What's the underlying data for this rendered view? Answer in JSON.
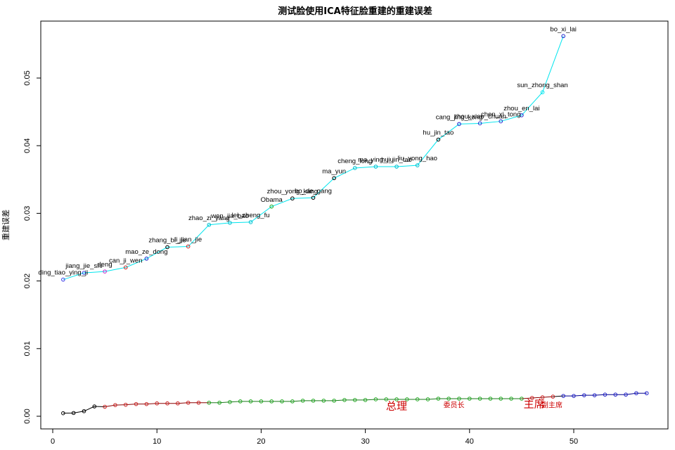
{
  "chart_data": {
    "type": "line",
    "title": "测试脸使用ICA特征脸重建的重建误差",
    "xlabel": "",
    "ylabel": "重建误差",
    "xlim": [
      0,
      58
    ],
    "ylim": [
      0,
      0.0585
    ],
    "x_ticks": [
      "0",
      "10",
      "20",
      "30",
      "40",
      "50"
    ],
    "y_ticks": [
      "0.00",
      "0.01",
      "0.02",
      "0.03",
      "0.04",
      "0.05"
    ],
    "grid": false,
    "series": [
      {
        "line_color": "#00e5ee",
        "points": [
          {
            "x": 1,
            "y": 0.0202,
            "label": "ding_tiao_ying_ji",
            "color": "#3a3ae8"
          },
          {
            "x": 3,
            "y": 0.0212,
            "label": "jiang_jie_shi",
            "color": "#3a3ae8"
          },
          {
            "x": 5,
            "y": 0.0214,
            "label": "deng",
            "color": "#cc22cc"
          },
          {
            "x": 7,
            "y": 0.022,
            "label": "can_ji_wen",
            "color": "#cc2222"
          },
          {
            "x": 9,
            "y": 0.0233,
            "label": "mao_ze_dong",
            "color": "#2222cc"
          },
          {
            "x": 11,
            "y": 0.025,
            "label": "zhang_bi_jie",
            "color": "#000000"
          },
          {
            "x": 13,
            "y": 0.0251,
            "label": "li_jian_jie",
            "color": "#cc2222"
          },
          {
            "x": 15,
            "y": 0.0283,
            "label": "zhao_zi_yang",
            "color": "#00bbcc"
          },
          {
            "x": 17,
            "y": 0.0286,
            "label": "wen_jia_bao",
            "color": "#00bbcc"
          },
          {
            "x": 19,
            "y": 0.0287,
            "label": "lei_zheng_fu",
            "color": "#00bbcc"
          },
          {
            "x": 21,
            "y": 0.031,
            "label": "Obama",
            "color": "#22aa22"
          },
          {
            "x": 23,
            "y": 0.0322,
            "label": "zhou_yong_kang",
            "color": "#000000"
          },
          {
            "x": 25,
            "y": 0.0323,
            "label": "bo_de_gang",
            "color": "#000000"
          },
          {
            "x": 27,
            "y": 0.0352,
            "label": "ma_yun",
            "color": "#000000"
          },
          {
            "x": 29,
            "y": 0.0367,
            "label": "cheng_long",
            "color": "#00bbcc"
          },
          {
            "x": 31,
            "y": 0.0369,
            "label": "ma_ying_jiu",
            "color": "#00bbcc"
          },
          {
            "x": 33,
            "y": 0.0369,
            "label": "hu_jin_tao",
            "color": "#00bbcc"
          },
          {
            "x": 35,
            "y": 0.0371,
            "label": "liu_yong_hao",
            "color": "#00bbcc"
          },
          {
            "x": 37,
            "y": 0.0409,
            "label": "hu_jin_tao",
            "color": "#000000"
          },
          {
            "x": 39,
            "y": 0.0432,
            "label": "cang_jing_kong",
            "color": "#2222cc"
          },
          {
            "x": 41,
            "y": 0.0433,
            "label": "zhou_xiao_chuan",
            "color": "#2222cc"
          },
          {
            "x": 43,
            "y": 0.0436,
            "label": "chen_xi_tong",
            "color": "#2222cc"
          },
          {
            "x": 45,
            "y": 0.0445,
            "label": "zhou_en_lai",
            "color": "#2222cc"
          },
          {
            "x": 47,
            "y": 0.0479,
            "label": "sun_zhong_shan",
            "color": "#00e5ee"
          },
          {
            "x": 49,
            "y": 0.0562,
            "label": "bo_xi_lai",
            "color": "#2222cc"
          }
        ]
      },
      {
        "segments": [
          {
            "color": "#000000",
            "x": [
              1,
              2,
              3,
              4,
              5
            ],
            "y": [
              0.00045,
              0.00048,
              0.00075,
              0.00145,
              0.0014
            ]
          },
          {
            "color": "#8b0000",
            "x": [
              5,
              6,
              7,
              8,
              9,
              10,
              11,
              12,
              13,
              14,
              15
            ],
            "y": [
              0.0014,
              0.00165,
              0.0017,
              0.0018,
              0.0018,
              0.0019,
              0.0019,
              0.0019,
              0.002,
              0.002,
              0.002
            ]
          },
          {
            "color": "#1a7a1a",
            "x": [
              15,
              16,
              17,
              18,
              19,
              20,
              21,
              22,
              23,
              24,
              25,
              26,
              27,
              28,
              29,
              30,
              31,
              32,
              33,
              34,
              35,
              36,
              37,
              38,
              39,
              40,
              41,
              42,
              43,
              44,
              45
            ],
            "y": [
              0.002,
              0.002,
              0.0021,
              0.0022,
              0.0022,
              0.0022,
              0.0022,
              0.0022,
              0.0022,
              0.0023,
              0.0023,
              0.0023,
              0.0023,
              0.0024,
              0.0024,
              0.0024,
              0.0025,
              0.0025,
              0.0025,
              0.0025,
              0.0025,
              0.0025,
              0.0026,
              0.0026,
              0.0026,
              0.0026,
              0.0026,
              0.0026,
              0.0026,
              0.0026,
              0.0026
            ]
          },
          {
            "color": "#8b0000",
            "x": [
              45,
              46,
              47,
              48
            ],
            "y": [
              0.0026,
              0.0027,
              0.0028,
              0.0029
            ]
          },
          {
            "color": "#000000",
            "x": [
              48,
              49
            ],
            "y": [
              0.0029,
              0.003
            ]
          },
          {
            "color": "#00008b",
            "x": [
              49,
              50,
              51,
              52,
              53,
              54,
              55,
              56,
              57
            ],
            "y": [
              0.003,
              0.003,
              0.0031,
              0.0031,
              0.0032,
              0.0032,
              0.0032,
              0.0034,
              0.0034
            ]
          }
        ],
        "point_colors": [
          {
            "from": 1,
            "to": 4,
            "color": "#000000"
          },
          {
            "from": 5,
            "to": 14,
            "color": "#cc2222"
          },
          {
            "from": 15,
            "to": 45,
            "color": "#22aa22"
          },
          {
            "from": 46,
            "to": 48,
            "color": "#cc2222"
          },
          {
            "from": 49,
            "to": 57,
            "color": "#2222cc"
          }
        ]
      }
    ],
    "annotations": [
      {
        "text": "总理",
        "x": 33.0,
        "y": 0.0015,
        "size": "big"
      },
      {
        "text": "委员长",
        "x": 38.5,
        "y": 0.0018,
        "size": "small"
      },
      {
        "text": "主席",
        "x": 46.2,
        "y": 0.0018,
        "size": "big"
      },
      {
        "text": "副主席",
        "x": 47.9,
        "y": 0.0018,
        "size": "small"
      }
    ]
  }
}
